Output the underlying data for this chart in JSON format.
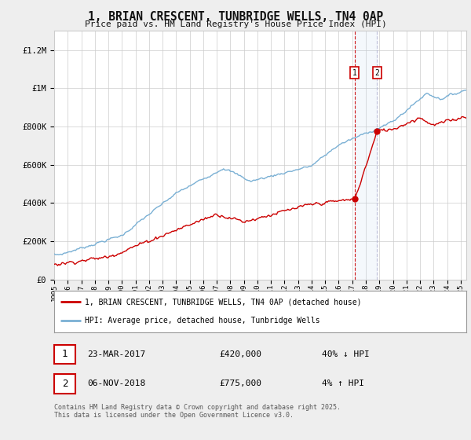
{
  "title": "1, BRIAN CRESCENT, TUNBRIDGE WELLS, TN4 0AP",
  "subtitle": "Price paid vs. HM Land Registry's House Price Index (HPI)",
  "ylim": [
    0,
    1300000
  ],
  "yticks": [
    0,
    200000,
    400000,
    600000,
    800000,
    1000000,
    1200000
  ],
  "ytick_labels": [
    "£0",
    "£200K",
    "£400K",
    "£600K",
    "£800K",
    "£1M",
    "£1.2M"
  ],
  "hpi_color": "#7ab0d4",
  "price_color": "#cc0000",
  "bg_color": "#eeeeee",
  "plot_bg_color": "#ffffff",
  "grid_color": "#cccccc",
  "event1_price": 420000,
  "event2_price": 775000,
  "event1_date": "23-MAR-2017",
  "event2_date": "06-NOV-2018",
  "event1_pct": "40% ↓ HPI",
  "event2_pct": "4% ↑ HPI",
  "legend_label1": "1, BRIAN CRESCENT, TUNBRIDGE WELLS, TN4 0AP (detached house)",
  "legend_label2": "HPI: Average price, detached house, Tunbridge Wells",
  "footer": "Contains HM Land Registry data © Crown copyright and database right 2025.\nThis data is licensed under the Open Government Licence v3.0.",
  "start_year": 1995,
  "end_year": 2025,
  "box_color": "#cc0000"
}
